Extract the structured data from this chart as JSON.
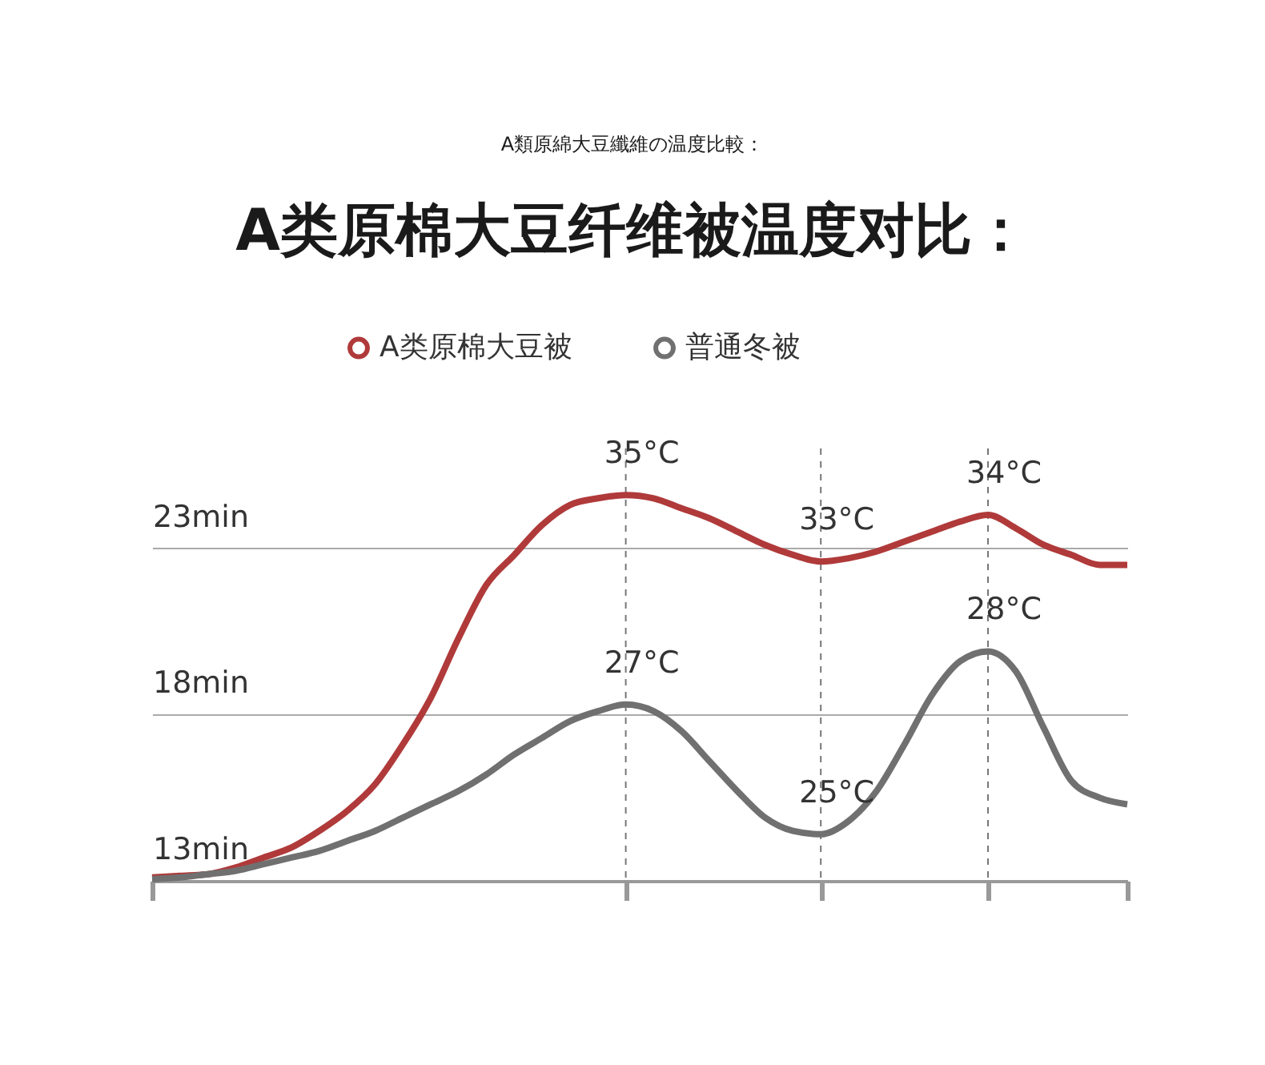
{
  "chart_data": {
    "type": "line",
    "title": "A类原棉大豆纤维被温度对比：",
    "subtitle": "A類原綿大豆纖維の温度比較：",
    "categories": [
      null,
      null,
      null,
      null,
      null,
      null,
      null,
      null,
      null,
      null,
      null,
      null,
      null,
      null,
      null,
      null,
      null,
      null,
      null,
      null,
      null,
      null,
      null,
      null,
      null,
      null,
      null,
      null,
      null,
      null,
      null,
      null,
      null,
      null,
      null,
      null
    ],
    "ylim": [
      13,
      26
    ],
    "yticks": [
      {
        "value": 13,
        "label": "13min"
      },
      {
        "value": 18,
        "label": "18min"
      },
      {
        "value": 23,
        "label": "23min"
      }
    ],
    "tick_labels": "y",
    "grid": true,
    "legend": "top",
    "marker": "none",
    "line_style": "solid",
    "annotations": [
      {
        "text": "35°C",
        "y": 24.6
      },
      {
        "text": "33°C",
        "y": 22.6
      },
      {
        "text": "34°C",
        "y": 24.0
      },
      {
        "text": "27°C",
        "y": 18.3
      },
      {
        "text": "25°C",
        "y": 14.4
      },
      {
        "text": "28°C",
        "y": 19.9
      }
    ],
    "series": [
      {
        "name": "A类原棉大豆被",
        "color": "#b03a3a",
        "values": [
          13.1,
          13.15,
          13.2,
          13.4,
          13.7,
          14.0,
          14.5,
          15.1,
          15.9,
          17.1,
          18.5,
          20.3,
          21.9,
          22.8,
          23.7,
          24.3,
          24.5,
          24.6,
          24.5,
          24.2,
          23.9,
          23.5,
          23.1,
          22.8,
          22.6,
          22.7,
          22.9,
          23.2,
          23.5,
          23.8,
          24.0,
          23.6,
          23.1,
          22.8,
          22.5,
          22.5
        ]
      },
      {
        "name": "普通冬被",
        "color": "#707070",
        "values": [
          13.05,
          13.1,
          13.2,
          13.3,
          13.5,
          13.7,
          13.9,
          14.2,
          14.5,
          14.9,
          15.3,
          15.7,
          16.2,
          16.8,
          17.3,
          17.8,
          18.1,
          18.3,
          18.1,
          17.5,
          16.6,
          15.7,
          14.9,
          14.5,
          14.4,
          14.8,
          15.7,
          17.1,
          18.6,
          19.6,
          19.9,
          19.3,
          17.6,
          16.0,
          15.5,
          15.3
        ]
      }
    ]
  }
}
